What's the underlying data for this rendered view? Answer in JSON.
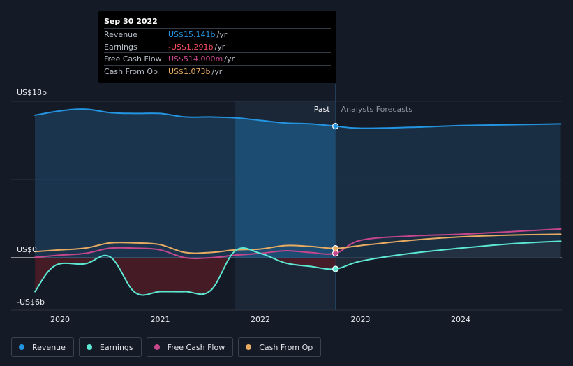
{
  "colors": {
    "revenue": "#2394df",
    "earnings": "#5de8d4",
    "fcf": "#c6468b",
    "cfo": "#e8ab62",
    "background": "#151b26"
  },
  "tooltip": {
    "date": "Sep 30 2022",
    "rows": [
      {
        "label": "Revenue",
        "value": "US$15.141b",
        "unit": "/yr",
        "color": "#2394df"
      },
      {
        "label": "Earnings",
        "value": "-US$1.291b",
        "unit": "/yr",
        "color": "#ff4d5e"
      },
      {
        "label": "Free Cash Flow",
        "value": "US$514.000m",
        "unit": "/yr",
        "color": "#c6468b"
      },
      {
        "label": "Cash From Op",
        "value": "US$1.073b",
        "unit": "/yr",
        "color": "#e8ab62"
      }
    ]
  },
  "labels": {
    "past": "Past",
    "forecast": "Analysts Forecasts"
  },
  "legend": [
    {
      "label": "Revenue",
      "color": "#2394df"
    },
    {
      "label": "Earnings",
      "color": "#5de8d4"
    },
    {
      "label": "Free Cash Flow",
      "color": "#c6468b"
    },
    {
      "label": "Cash From Op",
      "color": "#e8ab62"
    }
  ],
  "chart_data": {
    "type": "line",
    "y_tick_labels": [
      {
        "value": 18,
        "label": "US$18b"
      },
      {
        "value": 0,
        "label": "US$0"
      },
      {
        "value": -6,
        "label": "-US$6b"
      }
    ],
    "ylim": [
      -6,
      18
    ],
    "xlim": [
      2019.65,
      2025.0
    ],
    "x_ticks": [
      {
        "value": 2020,
        "label": "2020"
      },
      {
        "value": 2021,
        "label": "2021"
      },
      {
        "value": 2022,
        "label": "2022"
      },
      {
        "value": 2023,
        "label": "2023"
      },
      {
        "value": 2024,
        "label": "2024"
      }
    ],
    "past_region_start": 2021.75,
    "divider": 2022.75,
    "series": [
      {
        "name": "Revenue",
        "key": "revenue",
        "x": [
          2019.75,
          2020.0,
          2020.25,
          2020.5,
          2020.75,
          2021.0,
          2021.25,
          2021.5,
          2021.75,
          2022.0,
          2022.25,
          2022.5,
          2022.75,
          2023.0,
          2023.5,
          2024.0,
          2024.5,
          2025.0
        ],
        "y": [
          16.4,
          16.9,
          17.1,
          16.7,
          16.6,
          16.6,
          16.2,
          16.2,
          16.1,
          15.8,
          15.5,
          15.4,
          15.14,
          14.9,
          15.0,
          15.2,
          15.3,
          15.4
        ]
      },
      {
        "name": "Earnings",
        "key": "earnings",
        "x": [
          2019.75,
          2019.95,
          2020.25,
          2020.5,
          2020.75,
          2021.0,
          2021.25,
          2021.5,
          2021.75,
          2022.0,
          2022.25,
          2022.5,
          2022.75,
          2023.0,
          2023.5,
          2024.0,
          2024.5,
          2025.0
        ],
        "y": [
          -3.9,
          -0.9,
          -0.7,
          0.1,
          -4.0,
          -3.9,
          -3.9,
          -3.8,
          0.8,
          0.5,
          -0.6,
          -1.0,
          -1.29,
          -0.4,
          0.5,
          1.1,
          1.6,
          1.9
        ]
      },
      {
        "name": "Free Cash Flow",
        "key": "fcf",
        "x": [
          2019.75,
          2020.0,
          2020.25,
          2020.5,
          2020.75,
          2021.0,
          2021.25,
          2021.5,
          2021.75,
          2022.0,
          2022.25,
          2022.5,
          2022.75,
          2023.0,
          2023.5,
          2024.0,
          2024.5,
          2025.0
        ],
        "y": [
          0.05,
          0.3,
          0.5,
          1.1,
          1.1,
          0.9,
          0.0,
          0.0,
          0.3,
          0.5,
          0.8,
          0.6,
          0.514,
          2.0,
          2.5,
          2.7,
          3.0,
          3.3
        ]
      },
      {
        "name": "Cash From Op",
        "key": "cfo",
        "x": [
          2019.75,
          2020.0,
          2020.25,
          2020.5,
          2020.75,
          2021.0,
          2021.25,
          2021.5,
          2021.75,
          2022.0,
          2022.25,
          2022.5,
          2022.75,
          2023.0,
          2023.5,
          2024.0,
          2024.5,
          2025.0
        ],
        "y": [
          0.7,
          0.9,
          1.1,
          1.7,
          1.7,
          1.5,
          0.6,
          0.6,
          0.9,
          1.0,
          1.4,
          1.3,
          1.073,
          1.4,
          2.0,
          2.4,
          2.6,
          2.7
        ]
      }
    ]
  }
}
